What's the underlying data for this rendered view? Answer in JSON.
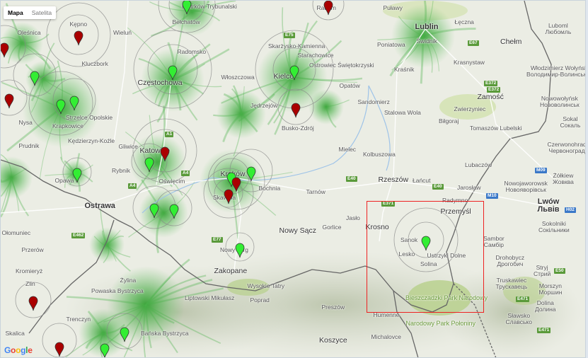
{
  "map_type_control": {
    "map": "Mapa",
    "satellite": "Satelita",
    "selected": "Mapa"
  },
  "logo": "Google",
  "colors": {
    "coverage": "#2ea82e",
    "marker_green": "#33ee33",
    "marker_red": "#aa0000",
    "selection": "#e22222",
    "border": "#666666"
  },
  "labels": [
    "Kępno",
    "Oleśnica",
    "Wieluń",
    "Kluczbork",
    "Radomsko",
    "Częstochowa",
    "Włoszczowa",
    "Skarżysko-Kamienna",
    "Starachowice",
    "Ostrowiec Świętokrzyski",
    "Kielce",
    "Opatów",
    "Jędrzejów",
    "Busko-Zdrój",
    "Sandomierz",
    "Stalowa Wola",
    "Biłgoraj",
    "Zwierzyniec",
    "Zamość",
    "Tomaszów Lubelski",
    "Kraśnik",
    "Lublin",
    "Świdnik",
    "Puławy",
    "Poniatowa",
    "Łęczna",
    "Chełm",
    "Krasnystaw",
    "Luboml\nЛюбомль",
    "Włodzimierz Wołyński\nВолодимир-Волинський",
    "Nowowołyńsk\nНововолинськ",
    "Sokal\nСокаль",
    "Czerwonohrad\nЧервоноград",
    "Lubaczów",
    "Żółkiew\nЖовква",
    "Radom",
    "Nysa",
    "Strzelce Opolskie",
    "Krapkowice",
    "Prudnik",
    "Kędzierzyn-Koźle",
    "Gliwice",
    "Katowice",
    "Rybnik",
    "Oświęcim",
    "Opawa",
    "Ostrawa",
    "Kraków",
    "Skawina",
    "Bochnia",
    "Tarnów",
    "Mielec",
    "Kolbuszowa",
    "Rzeszów",
    "Łańcut",
    "Jarosław",
    "Radymno",
    "Przemyśl",
    "Krosno",
    "Jasło",
    "Gorlice",
    "Nowy Sącz",
    "Sanok",
    "Lesko",
    "Ustrzyki Dolne",
    "Solina",
    "Sambor\nСамбір",
    "Drohobycz\nДрогобич",
    "Stryj\nСтрий",
    "Truskawiec\nТрускавець",
    "Dolina\nДолина",
    "Lwów\nЛьвів",
    "Nowojaworowsk\nНовояворівськ",
    "Sokolniki\nСокільники",
    "Nowy Targ",
    "Zakopane",
    "Poprad",
    "Wysokie Tatry",
    "Preszów",
    "Koszyce",
    "Humenné",
    "Michalovce",
    "Liptowski Mikułasz",
    "Żylina",
    "Bańska Bystrzyca",
    "Ołomuniec",
    "Przerów",
    "Kromieryż",
    "Zlin",
    "Skalica",
    "Trenczyn",
    "Powaska Bystrzyca",
    "Bieszczadzki Park Narodowy",
    "Narodowy Park Połoniny",
    "Bełchatów",
    "Piotrków Trybunalski",
    "Morszyn\nМоршин",
    "Sławsko\nСлавсько"
  ],
  "road_badges": [
    "E67",
    "E372",
    "E372",
    "E40",
    "M10",
    "M09",
    "E371",
    "E50",
    "E471",
    "E471",
    "A1",
    "A4",
    "E40",
    "E462",
    "E77",
    "H02",
    "E75",
    "A4"
  ],
  "markers": {
    "green_count": 16,
    "red_count": 10
  }
}
